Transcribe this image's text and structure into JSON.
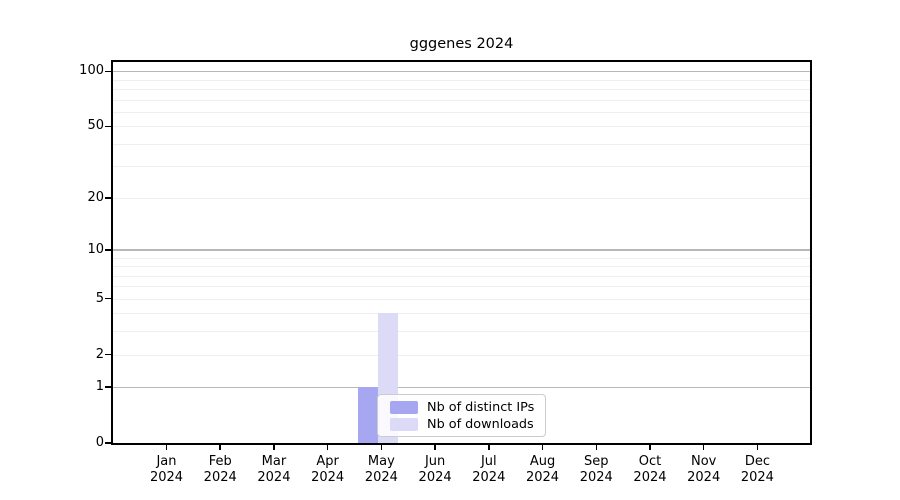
{
  "chart_data": {
    "type": "bar",
    "title": "gggenes 2024",
    "categories": [
      "Jan 2024",
      "Feb 2024",
      "Mar 2024",
      "Apr 2024",
      "May 2024",
      "Jun 2024",
      "Jul 2024",
      "Aug 2024",
      "Sep 2024",
      "Oct 2024",
      "Nov 2024",
      "Dec 2024"
    ],
    "series": [
      {
        "name": "Nb of distinct IPs",
        "color": "#a6a6f1",
        "values": [
          0,
          0,
          0,
          0,
          1,
          0,
          0,
          0,
          0,
          0,
          0,
          0
        ]
      },
      {
        "name": "Nb of downloads",
        "color": "#dbdbf8",
        "values": [
          0,
          0,
          0,
          0,
          4,
          0,
          0,
          0,
          0,
          0,
          0,
          0
        ]
      }
    ],
    "xlabel": "",
    "ylabel": "",
    "yscale": "log1p",
    "ylim": [
      0,
      113
    ],
    "y_ticks": [
      0,
      1,
      2,
      5,
      10,
      20,
      50,
      100
    ],
    "grid": "horizontal",
    "grid_major_values": [
      1,
      10,
      100
    ],
    "grid_minor_values": [
      2,
      3,
      4,
      5,
      6,
      7,
      8,
      9,
      20,
      30,
      40,
      50,
      60,
      70,
      80,
      90
    ],
    "legend_position": "inside-lower-center"
  },
  "colors": {
    "background": "#ffffff",
    "spine": "#000000",
    "grid_major": "#b8b8b8",
    "grid_minor": "#efefef",
    "legend_border": "#cccccc",
    "text": "#000000"
  }
}
